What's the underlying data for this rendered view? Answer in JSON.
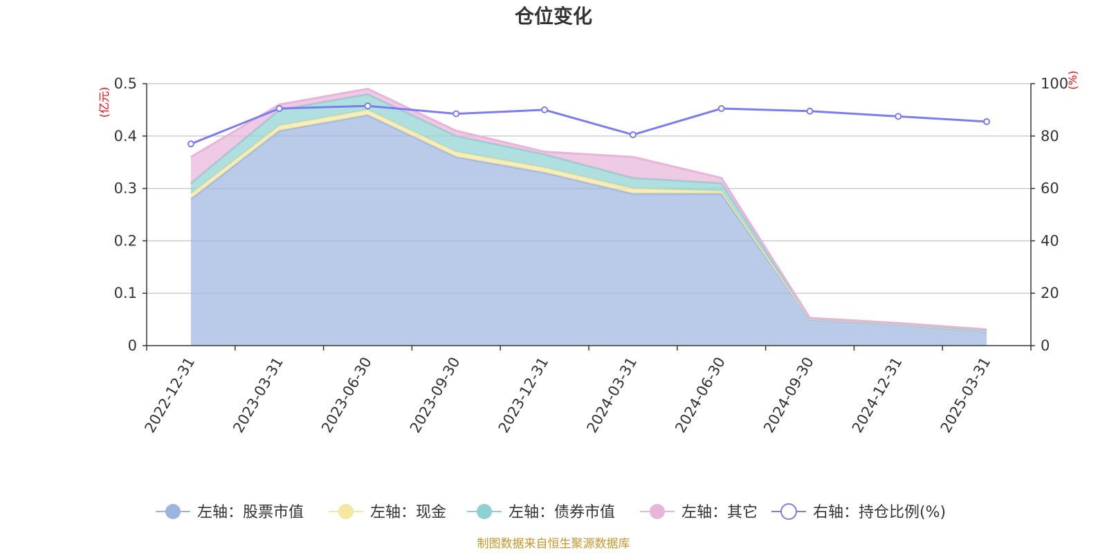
{
  "chart_data": {
    "type": "area",
    "title": "仓位变化",
    "source": "制图数据来自恒生聚源数据库",
    "categories": [
      "2022-12-31",
      "2023-03-31",
      "2023-06-30",
      "2023-09-30",
      "2023-12-31",
      "2024-03-31",
      "2024-06-30",
      "2024-09-30",
      "2024-12-31",
      "2025-03-31"
    ],
    "left_axis": {
      "unit": "(亿元)",
      "ylim": [
        0,
        0.5
      ],
      "ticks": [
        "0",
        "0.1",
        "0.2",
        "0.3",
        "0.4",
        "0.5"
      ]
    },
    "right_axis": {
      "unit": "(%)",
      "ylim": [
        0,
        100
      ],
      "ticks": [
        "0",
        "20",
        "40",
        "60",
        "80",
        "100"
      ]
    },
    "grid": true,
    "legend_position": "bottom",
    "stacked": true,
    "series": [
      {
        "name": "左轴：股票市值",
        "axis": "left",
        "color": "#9bb5e0",
        "values": [
          0.28,
          0.41,
          0.44,
          0.36,
          0.33,
          0.29,
          0.29,
          0.05,
          0.04,
          0.027
        ]
      },
      {
        "name": "左轴：现金",
        "axis": "left",
        "color": "#f5e6a0",
        "values": [
          0.01,
          0.01,
          0.01,
          0.01,
          0.01,
          0.01,
          0.005,
          0.001,
          0.001,
          0.001
        ]
      },
      {
        "name": "左轴：债券市值",
        "axis": "left",
        "color": "#8ed1d3",
        "values": [
          0.02,
          0.03,
          0.03,
          0.03,
          0.025,
          0.02,
          0.015,
          0.001,
          0.001,
          0.001
        ]
      },
      {
        "name": "左轴：其它",
        "axis": "left",
        "color": "#e8b4d8",
        "values": [
          0.05,
          0.01,
          0.01,
          0.01,
          0.005,
          0.04,
          0.01,
          0.001,
          0.001,
          0.002
        ]
      },
      {
        "name": "右轴：持仓比例(%)",
        "axis": "right",
        "color": "#7b7cf0",
        "type": "line",
        "values": [
          77,
          90.5,
          91.5,
          88.5,
          90,
          80.5,
          90.5,
          89.5,
          87.5,
          85.5
        ]
      }
    ]
  }
}
